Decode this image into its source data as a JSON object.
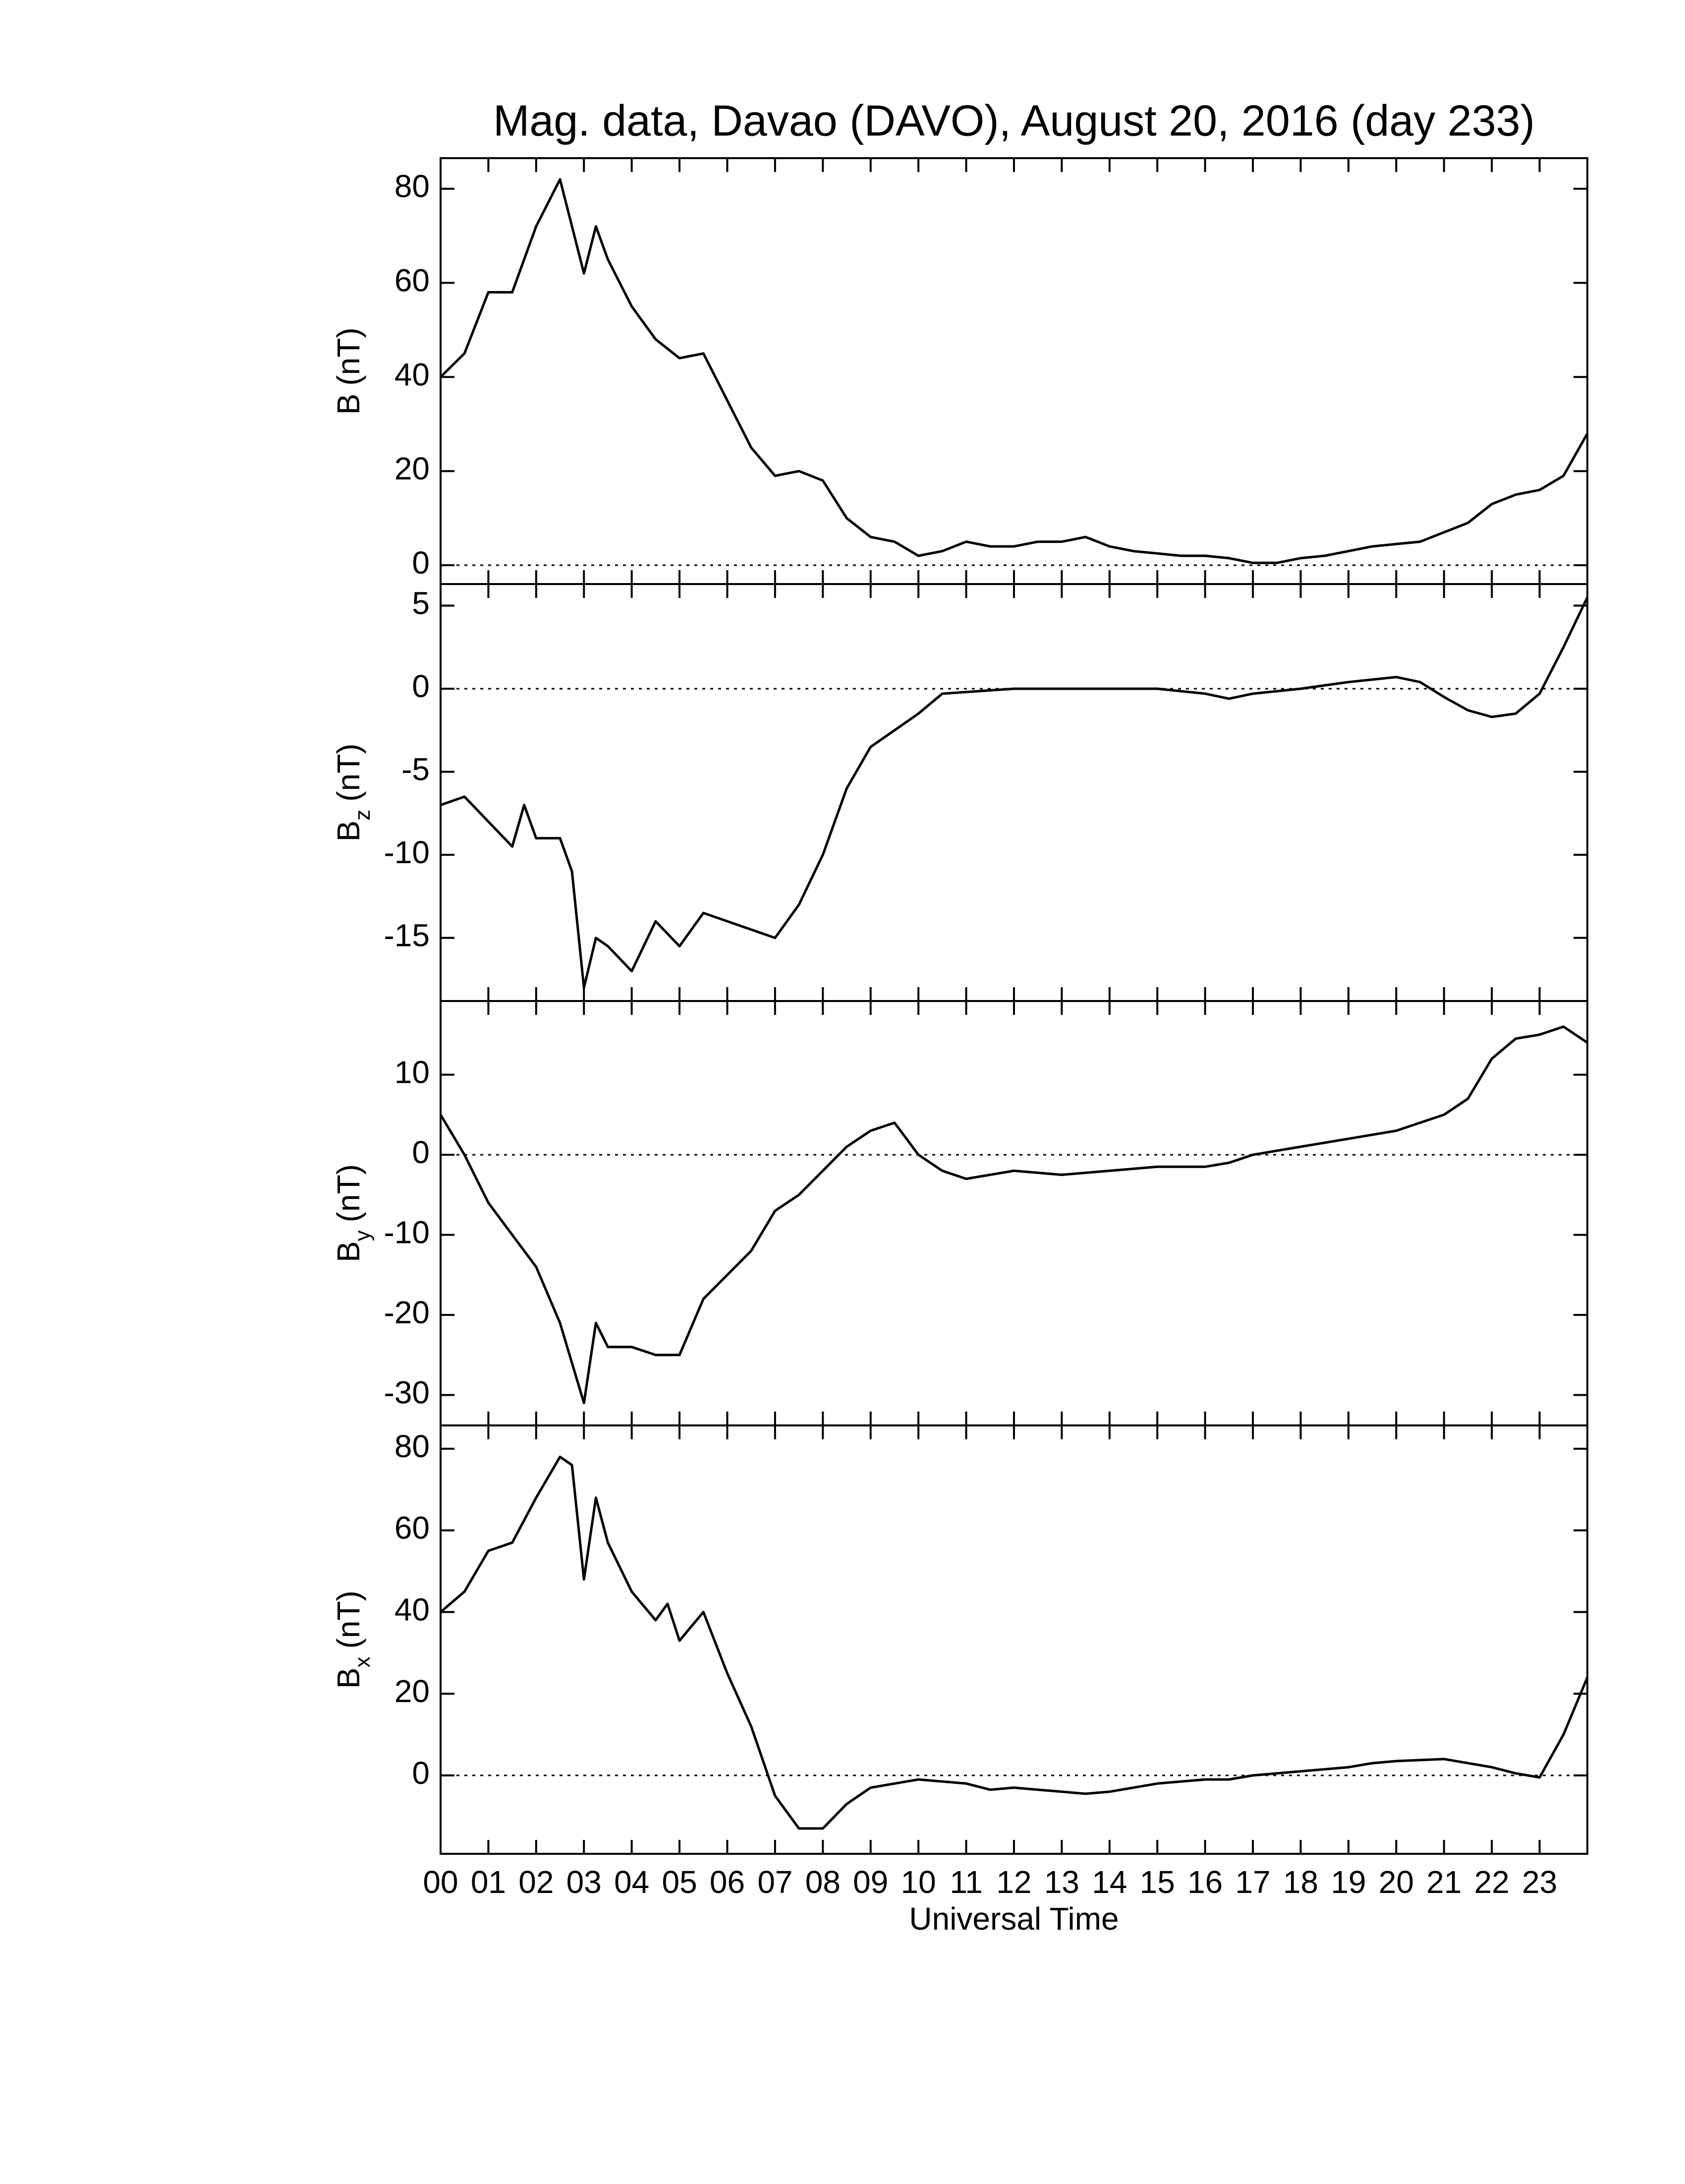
{
  "chart_data": [
    {
      "type": "line",
      "title": "Mag. data, Davao (DAVO), August 20, 2016 (day 233)",
      "ylabel": "B",
      "ylabel_units": "(nT)",
      "x": [
        0,
        0.5,
        1,
        1.5,
        2,
        2.5,
        3,
        3.25,
        3.5,
        4,
        4.5,
        5,
        5.5,
        6,
        6.5,
        7,
        7.5,
        8,
        8.5,
        9,
        9.5,
        10,
        10.5,
        11,
        11.5,
        12,
        12.5,
        13,
        13.5,
        14,
        14.5,
        15,
        15.5,
        16,
        16.5,
        17,
        17.5,
        18,
        18.5,
        19,
        19.5,
        20,
        20.5,
        21,
        21.5,
        22,
        22.5,
        23,
        23.5,
        24
      ],
      "values": [
        40,
        45,
        58,
        58,
        72,
        82,
        62,
        72,
        65,
        55,
        48,
        44,
        45,
        35,
        25,
        19,
        20,
        18,
        10,
        6,
        5,
        2,
        3,
        5,
        4,
        4,
        5,
        5,
        6,
        4,
        3,
        2.5,
        2,
        2,
        1.5,
        0.5,
        0.5,
        1.5,
        2,
        3,
        4,
        4.5,
        5,
        7,
        9,
        13,
        15,
        16,
        19,
        28
      ],
      "color": "#000000",
      "xlim": [
        0,
        24
      ],
      "ylim": [
        -4,
        86.5
      ],
      "yticks": [
        0,
        20,
        40,
        60,
        80
      ],
      "hline": 0,
      "xticks": [
        {
          "value": 0,
          "label": "00"
        },
        {
          "value": 1,
          "label": "01"
        },
        {
          "value": 2,
          "label": "02"
        },
        {
          "value": 3,
          "label": "03"
        },
        {
          "value": 4,
          "label": "04"
        },
        {
          "value": 5,
          "label": "05"
        },
        {
          "value": 6,
          "label": "06"
        },
        {
          "value": 7,
          "label": "07"
        },
        {
          "value": 8,
          "label": "08"
        },
        {
          "value": 9,
          "label": "09"
        },
        {
          "value": 10,
          "label": "10"
        },
        {
          "value": 11,
          "label": "11"
        },
        {
          "value": 12,
          "label": "12"
        },
        {
          "value": 13,
          "label": "13"
        },
        {
          "value": 14,
          "label": "14"
        },
        {
          "value": 15,
          "label": "15"
        },
        {
          "value": 16,
          "label": "16"
        },
        {
          "value": 17,
          "label": "17"
        },
        {
          "value": 18,
          "label": "18"
        },
        {
          "value": 19,
          "label": "19"
        },
        {
          "value": 20,
          "label": "20"
        },
        {
          "value": 21,
          "label": "21"
        },
        {
          "value": 22,
          "label": "22"
        },
        {
          "value": 23,
          "label": "23"
        }
      ]
    },
    {
      "type": "line",
      "ylabel": "B",
      "ylabel_subscript": "z",
      "ylabel_units": "(nT)",
      "x": [
        0,
        0.5,
        1,
        1.5,
        1.75,
        2,
        2.5,
        2.75,
        3,
        3.25,
        3.5,
        4,
        4.5,
        5,
        5.5,
        6,
        6.5,
        7,
        7.5,
        8,
        8.5,
        9,
        9.5,
        10,
        10.5,
        11,
        12,
        13,
        14,
        15,
        16,
        16.5,
        17,
        18,
        19,
        20,
        20.5,
        21,
        21.5,
        22,
        22.5,
        23,
        23.5,
        24
      ],
      "values": [
        -7,
        -6.5,
        -8,
        -9.5,
        -7,
        -9,
        -9,
        -11,
        -18,
        -15,
        -15.5,
        -17,
        -14,
        -15.5,
        -13.5,
        -14,
        -14.5,
        -15,
        -13,
        -10,
        -6,
        -3.5,
        -2.5,
        -1.5,
        -0.3,
        -0.2,
        0,
        0,
        0,
        0,
        -0.3,
        -0.6,
        -0.3,
        0,
        0.4,
        0.7,
        0.4,
        -0.5,
        -1.3,
        -1.7,
        -1.5,
        -0.3,
        2.5,
        5.5
      ],
      "color": "#000000",
      "xlim": [
        0,
        24
      ],
      "ylim": [
        -18.8,
        6.3
      ],
      "yticks": [
        -15,
        -10,
        -5,
        0,
        5
      ],
      "hline": 0,
      "xticks": [
        0,
        1,
        2,
        3,
        4,
        5,
        6,
        7,
        8,
        9,
        10,
        11,
        12,
        13,
        14,
        15,
        16,
        17,
        18,
        19,
        20,
        21,
        22,
        23
      ]
    },
    {
      "type": "line",
      "ylabel": "B",
      "ylabel_subscript": "y",
      "ylabel_units": "(nT)",
      "x": [
        0,
        0.5,
        1,
        1.5,
        2,
        2.5,
        2.75,
        3,
        3.25,
        3.5,
        4,
        4.5,
        5,
        5.5,
        6,
        6.5,
        7,
        7.5,
        8,
        8.5,
        9,
        9.5,
        10,
        10.5,
        11,
        11.5,
        12,
        13,
        14,
        15,
        16,
        16.5,
        17,
        18,
        19,
        20,
        21,
        21.5,
        22,
        22.5,
        23,
        23.5,
        24
      ],
      "values": [
        5,
        0,
        -6,
        -10,
        -14,
        -21,
        -26,
        -31,
        -21,
        -24,
        -24,
        -25,
        -25,
        -18,
        -15,
        -12,
        -7,
        -5,
        -2,
        1,
        3,
        4,
        0,
        -2,
        -3,
        -2.5,
        -2,
        -2.5,
        -2,
        -1.5,
        -1.5,
        -1,
        0,
        1,
        2,
        3,
        5,
        7,
        12,
        14.5,
        15,
        16,
        14
      ],
      "color": "#000000",
      "xlim": [
        0,
        24
      ],
      "ylim": [
        -33.8,
        19.2
      ],
      "yticks": [
        -30,
        -20,
        -10,
        0,
        10
      ],
      "hline": 0,
      "xticks": [
        0,
        1,
        2,
        3,
        4,
        5,
        6,
        7,
        8,
        9,
        10,
        11,
        12,
        13,
        14,
        15,
        16,
        17,
        18,
        19,
        20,
        21,
        22,
        23
      ]
    },
    {
      "type": "line",
      "ylabel": "B",
      "ylabel_subscript": "x",
      "ylabel_units": "(nT)",
      "xlabel": "Universal Time",
      "x": [
        0,
        0.5,
        1,
        1.5,
        2,
        2.5,
        2.75,
        3,
        3.25,
        3.5,
        4,
        4.5,
        4.75,
        5,
        5.5,
        6,
        6.5,
        7,
        7.5,
        8,
        8.5,
        9,
        9.5,
        10,
        11,
        11.5,
        12,
        12.5,
        13,
        13.5,
        14,
        15,
        16,
        16.5,
        17,
        18,
        19,
        19.5,
        20,
        21,
        22,
        22.5,
        23,
        23.5,
        24
      ],
      "values": [
        40,
        45,
        55,
        57,
        68,
        78,
        76,
        48,
        68,
        57,
        45,
        38,
        42,
        33,
        40,
        25,
        12,
        -5,
        -13,
        -13,
        -7,
        -3,
        -2,
        -1,
        -2,
        -3.5,
        -3,
        -3.5,
        -4,
        -4.5,
        -4,
        -2,
        -1,
        -1,
        0,
        1,
        2,
        3,
        3.5,
        4,
        2,
        0.5,
        -0.5,
        10,
        24
      ],
      "color": "#000000",
      "xlim": [
        0,
        24
      ],
      "ylim": [
        -19.2,
        85.7
      ],
      "yticks": [
        0,
        20,
        40,
        60,
        80
      ],
      "hline": 0,
      "xticks": [
        {
          "value": 0,
          "label": "00"
        },
        {
          "value": 1,
          "label": "01"
        },
        {
          "value": 2,
          "label": "02"
        },
        {
          "value": 3,
          "label": "03"
        },
        {
          "value": 4,
          "label": "04"
        },
        {
          "value": 5,
          "label": "05"
        },
        {
          "value": 6,
          "label": "06"
        },
        {
          "value": 7,
          "label": "07"
        },
        {
          "value": 8,
          "label": "08"
        },
        {
          "value": 9,
          "label": "09"
        },
        {
          "value": 10,
          "label": "10"
        },
        {
          "value": 11,
          "label": "11"
        },
        {
          "value": 12,
          "label": "12"
        },
        {
          "value": 13,
          "label": "13"
        },
        {
          "value": 14,
          "label": "14"
        },
        {
          "value": 15,
          "label": "15"
        },
        {
          "value": 16,
          "label": "16"
        },
        {
          "value": 17,
          "label": "17"
        },
        {
          "value": 18,
          "label": "18"
        },
        {
          "value": 19,
          "label": "19"
        },
        {
          "value": 20,
          "label": "20"
        },
        {
          "value": 21,
          "label": "21"
        },
        {
          "value": 22,
          "label": "22"
        },
        {
          "value": 23,
          "label": "23"
        }
      ]
    }
  ]
}
